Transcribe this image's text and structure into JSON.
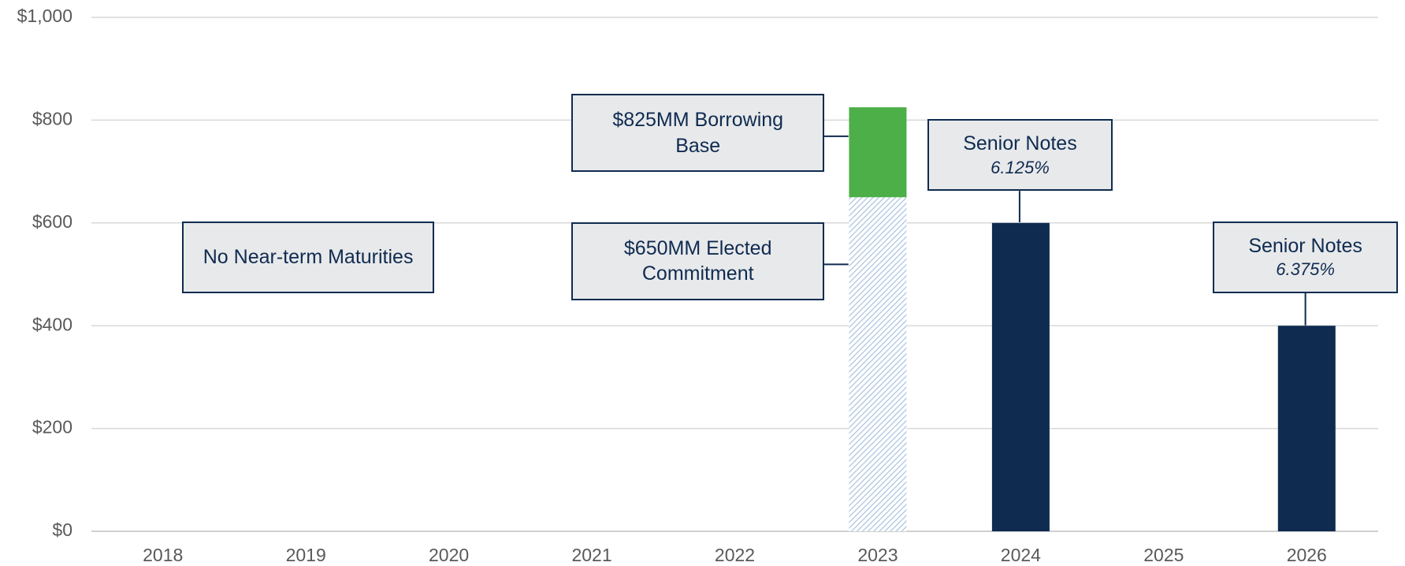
{
  "chart_data": {
    "type": "stacked_bar",
    "categories": [
      "2018",
      "2019",
      "2020",
      "2021",
      "2022",
      "2023",
      "2024",
      "2025",
      "2026"
    ],
    "series": [
      {
        "color": "#a9c4e0",
        "pattern": "hatch",
        "values": [
          null,
          null,
          null,
          null,
          null,
          650,
          null,
          null,
          null
        ]
      },
      {
        "color": "#4caf47",
        "values": [
          null,
          null,
          null,
          null,
          null,
          175,
          null,
          null,
          null
        ]
      },
      {
        "color": "#0f2b50",
        "values": [
          null,
          null,
          null,
          null,
          null,
          null,
          600,
          null,
          400
        ]
      }
    ],
    "ylim": [
      0,
      1000
    ],
    "yticks": [
      {
        "value": 0,
        "label": "$0"
      },
      {
        "value": 200,
        "label": "$200"
      },
      {
        "value": 400,
        "label": "$400"
      },
      {
        "value": 600,
        "label": "$600"
      },
      {
        "value": 800,
        "label": "$800"
      },
      {
        "value": 1000,
        "label": "$1,000"
      }
    ],
    "grid": true,
    "annotations": [
      {
        "text": "No Near-term Maturities"
      },
      {
        "text": "$825MM Borrowing Base"
      },
      {
        "text": "$650MM Elected Commitment"
      },
      {
        "text": "Senior Notes",
        "subtext": "6.125%"
      },
      {
        "text": "Senior Notes",
        "subtext": "6.375%"
      }
    ]
  }
}
